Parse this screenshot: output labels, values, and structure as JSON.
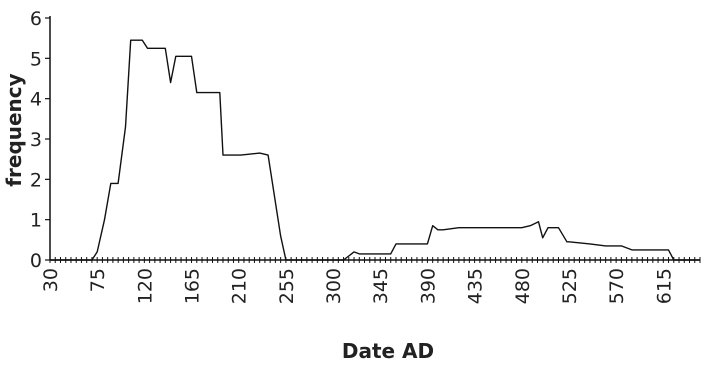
{
  "chart_data": {
    "type": "line",
    "title": "",
    "xlabel": "Date AD",
    "ylabel": "frequency",
    "xlim": [
      30,
      650
    ],
    "ylim": [
      0,
      6
    ],
    "x_ticks": [
      30,
      75,
      120,
      165,
      210,
      255,
      300,
      345,
      390,
      435,
      480,
      525,
      570,
      615
    ],
    "y_ticks": [
      0,
      1,
      2,
      3,
      4,
      5,
      6
    ],
    "grid": false,
    "legend": "none",
    "colors": {
      "line": "#111111",
      "axis": "#111111"
    },
    "series": [
      {
        "x": [
          30,
          70,
          75,
          82,
          88,
          95,
          102,
          107,
          118,
          123,
          140,
          145,
          150,
          165,
          170,
          178,
          192,
          195,
          208,
          212,
          230,
          238,
          250,
          255,
          260,
          310,
          315,
          320,
          325,
          335,
          355,
          360,
          360,
          385,
          390,
          395,
          400,
          405,
          420,
          440,
          480,
          488,
          492,
          496,
          500,
          505,
          515,
          523,
          525,
          545,
          560,
          575,
          585,
          605,
          620,
          625,
          650
        ],
        "y": [
          0,
          0,
          0.2,
          1.0,
          1.9,
          1.9,
          3.3,
          5.45,
          5.45,
          5.25,
          5.25,
          4.4,
          5.05,
          5.05,
          4.15,
          4.15,
          4.15,
          2.6,
          2.6,
          2.6,
          2.65,
          2.6,
          0.6,
          0,
          0,
          0,
          0.1,
          0.2,
          0.15,
          0.15,
          0.15,
          0.4,
          0.4,
          0.4,
          0.4,
          0.85,
          0.75,
          0.75,
          0.8,
          0.8,
          0.8,
          0.85,
          0.9,
          0.95,
          0.55,
          0.8,
          0.8,
          0.45,
          0.45,
          0.4,
          0.35,
          0.35,
          0.25,
          0.25,
          0.25,
          0,
          0
        ]
      }
    ]
  }
}
